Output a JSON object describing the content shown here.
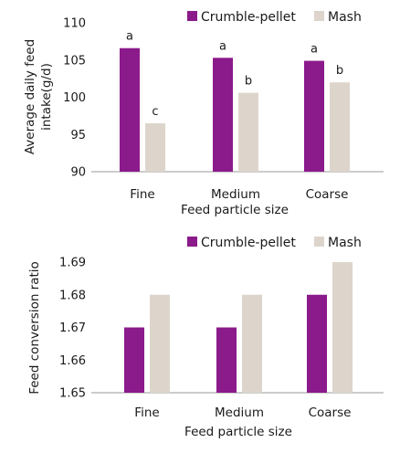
{
  "colors": {
    "crumble_pellet": "#8b1a8b",
    "mash": "#ddd5cb",
    "axis": "#999999"
  },
  "chart_data": [
    {
      "type": "bar",
      "title": "",
      "xlabel": "Feed particle size",
      "ylabel": [
        "Average daily feed",
        "intake(g/d)"
      ],
      "categories": [
        "Fine",
        "Medium",
        "Coarse"
      ],
      "series": [
        {
          "name": "Crumble-pellet",
          "values": [
            106.6,
            105.3,
            104.9
          ],
          "labels": [
            "a",
            "a",
            "a"
          ]
        },
        {
          "name": "Mash",
          "values": [
            96.5,
            100.6,
            102.0
          ],
          "labels": [
            "c",
            "b",
            "b"
          ]
        }
      ],
      "ylim": [
        90,
        110
      ],
      "yticks": [
        "90",
        "95",
        "100",
        "105",
        "110"
      ],
      "legend": "top-right",
      "grid": false
    },
    {
      "type": "bar",
      "title": "",
      "xlabel": "Feed particle size",
      "ylabel": [
        "Feed conversion ratio"
      ],
      "categories": [
        "Fine",
        "Medium",
        "Coarse"
      ],
      "series": [
        {
          "name": "Crumble-pellet",
          "values": [
            1.67,
            1.67,
            1.68
          ],
          "labels": [
            "",
            "",
            ""
          ]
        },
        {
          "name": "Mash",
          "values": [
            1.68,
            1.68,
            1.69
          ],
          "labels": [
            "",
            "",
            ""
          ]
        }
      ],
      "ylim": [
        1.65,
        1.69
      ],
      "yticks": [
        "1.65",
        "1.66",
        "1.67",
        "1.68",
        "1.69"
      ],
      "legend": "top-right",
      "grid": false
    }
  ]
}
